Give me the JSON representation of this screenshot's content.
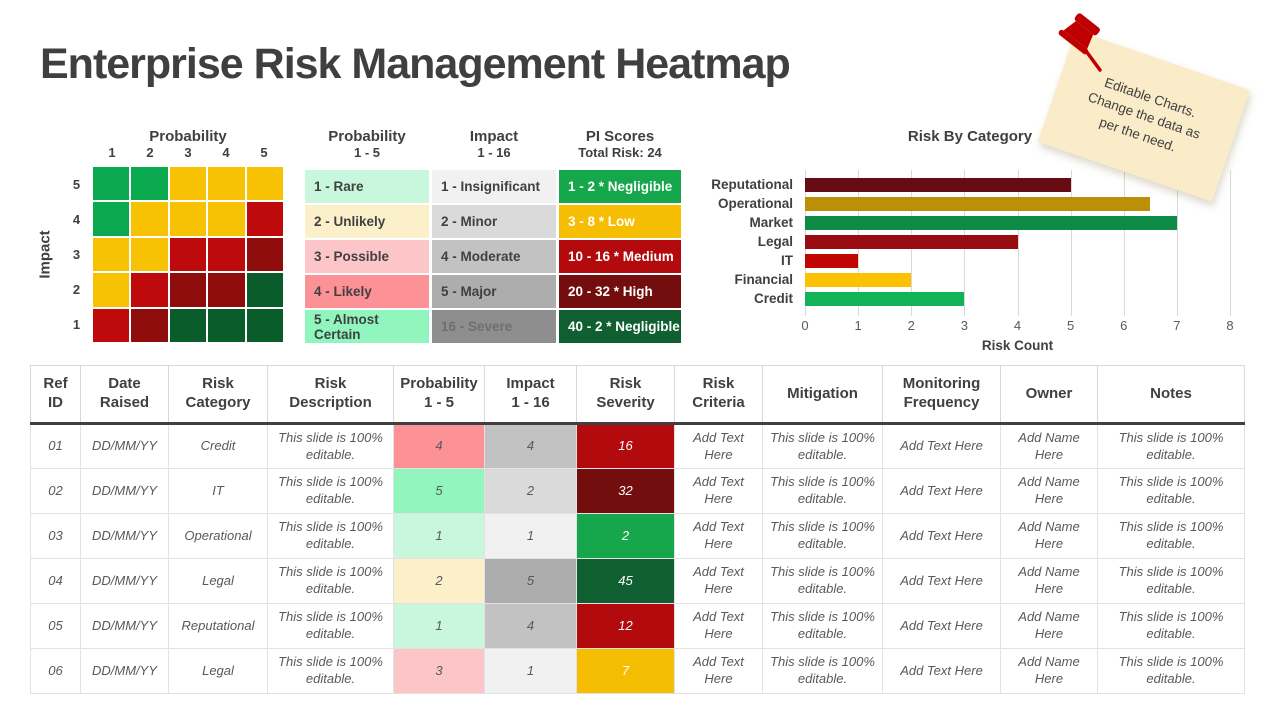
{
  "title": "Enterprise Risk Management Heatmap",
  "heatmap": {
    "x_title": "Probability",
    "y_title": "Impact",
    "x_labels": [
      "1",
      "2",
      "3",
      "4",
      "5"
    ],
    "y_labels": [
      "5",
      "4",
      "3",
      "2",
      "1"
    ],
    "palette": {
      "green": "#0AA84F",
      "yellow": "#F7C104",
      "red": "#BE0A0A",
      "darkred": "#8E0C0C",
      "darkgreen": "#0A5C2B"
    },
    "rows": [
      [
        "green",
        "green",
        "yellow",
        "yellow",
        "yellow"
      ],
      [
        "green",
        "yellow",
        "yellow",
        "yellow",
        "red"
      ],
      [
        "yellow",
        "yellow",
        "red",
        "red",
        "darkred"
      ],
      [
        "yellow",
        "red",
        "darkred",
        "darkred",
        "darkgreen"
      ],
      [
        "red",
        "darkred",
        "darkgreen",
        "darkgreen",
        "darkgreen"
      ]
    ]
  },
  "legend": {
    "columns": [
      {
        "title": "Probability",
        "subtitle": "1 - 5",
        "cells": [
          {
            "label": "1 - Rare",
            "bg": "#C9F7DE",
            "fg": "#404040"
          },
          {
            "label": "2 - Unlikely",
            "bg": "#FCF0CB",
            "fg": "#404040"
          },
          {
            "label": "3 - Possible",
            "bg": "#FCC6C9",
            "fg": "#404040"
          },
          {
            "label": "4 - Likely",
            "bg": "#FC9295",
            "fg": "#404040"
          },
          {
            "label": "5 - Almost Certain",
            "bg": "#90F6BE",
            "fg": "#404040"
          }
        ]
      },
      {
        "title": "Impact",
        "subtitle": "1 - 16",
        "cells": [
          {
            "label": "1 - Insignificant",
            "bg": "#F1F1F1",
            "fg": "#404040"
          },
          {
            "label": "2 - Minor",
            "bg": "#DADADA",
            "fg": "#404040"
          },
          {
            "label": "4 - Moderate",
            "bg": "#C2C2C2",
            "fg": "#404040"
          },
          {
            "label": "5 - Major",
            "bg": "#ADADAD",
            "fg": "#404040"
          },
          {
            "label": "16 - Severe",
            "bg": "#8E8E8E",
            "fg": "#6F6F6F"
          }
        ]
      },
      {
        "title": "PI Scores",
        "subtitle": "Total Risk: 24",
        "cells": [
          {
            "label": "1 - 2 * Negligible",
            "bg": "#16A64B",
            "fg": "#FFFFFF"
          },
          {
            "label": "3 - 8 * Low",
            "bg": "#F5BE03",
            "fg": "#FFFFFF"
          },
          {
            "label": "10 - 16 * Medium",
            "bg": "#B30A0D",
            "fg": "#FFFFFF"
          },
          {
            "label": "20 - 32 * High",
            "bg": "#740D0D",
            "fg": "#FFFFFF"
          },
          {
            "label": "40 - 2 * Negligible",
            "bg": "#0F5F31",
            "fg": "#FFFFFF"
          }
        ]
      }
    ]
  },
  "chart_data": {
    "type": "bar",
    "orientation": "horizontal",
    "title": "Risk By Category",
    "categories": [
      "Reputational",
      "Operational",
      "Market",
      "Legal",
      "IT",
      "Financial",
      "Credit"
    ],
    "values": [
      5,
      6.5,
      7,
      4,
      1,
      2,
      3
    ],
    "colors": [
      "#680C13",
      "#BB8F06",
      "#0C8A46",
      "#990D12",
      "#C00502",
      "#FBC102",
      "#12B357"
    ],
    "xlabel": "Risk Count",
    "xlim": [
      0,
      8
    ],
    "xticks": [
      "0",
      "1",
      "2",
      "3",
      "4",
      "5",
      "6",
      "7",
      "8"
    ],
    "grid": true,
    "legend_shown": false
  },
  "sticky_note": {
    "lines": [
      "Editable Charts.",
      "Change the data as",
      "per the need."
    ]
  },
  "risk_table": {
    "headers": [
      "Ref\nID",
      "Date\nRaised",
      "Risk\nCategory",
      "Risk Description",
      "Probability\n1 - 5",
      "Impact\n1 - 16",
      "Risk\nSeverity",
      "Risk\nCriteria",
      "Mitigation",
      "Monitoring\nFrequency",
      "Owner",
      "Notes"
    ],
    "rows": [
      {
        "ref": "01",
        "date": "DD/MM/YY",
        "category": "Credit",
        "description": "This slide is 100% editable.",
        "prob": {
          "v": "4",
          "bg": "#FC9295",
          "fg": "#595959"
        },
        "impact": {
          "v": "4",
          "bg": "#C2C2C2",
          "fg": "#595959"
        },
        "severity": {
          "v": "16",
          "bg": "#B30A0D",
          "fg": "#FFFFFF"
        },
        "criteria": "Add Text Here",
        "mitigation": "This slide is 100% editable.",
        "monitoring": "Add Text Here",
        "owner": "Add Name Here",
        "notes": "This slide is 100% editable."
      },
      {
        "ref": "02",
        "date": "DD/MM/YY",
        "category": "IT",
        "description": "This slide is 100% editable.",
        "prob": {
          "v": "5",
          "bg": "#90F6BE",
          "fg": "#595959"
        },
        "impact": {
          "v": "2",
          "bg": "#DADADA",
          "fg": "#595959"
        },
        "severity": {
          "v": "32",
          "bg": "#740D0D",
          "fg": "#FFFFFF"
        },
        "criteria": "Add Text Here",
        "mitigation": "This slide is 100% editable.",
        "monitoring": "Add Text Here",
        "owner": "Add Name Here",
        "notes": "This slide is 100% editable."
      },
      {
        "ref": "03",
        "date": "DD/MM/YY",
        "category": "Operational",
        "description": "This slide is 100% editable.",
        "prob": {
          "v": "1",
          "bg": "#C9F7DE",
          "fg": "#595959"
        },
        "impact": {
          "v": "1",
          "bg": "#F1F1F1",
          "fg": "#595959"
        },
        "severity": {
          "v": "2",
          "bg": "#16A64B",
          "fg": "#FFFFFF"
        },
        "criteria": "Add Text Here",
        "mitigation": "This slide is 100% editable.",
        "monitoring": "Add Text Here",
        "owner": "Add Name Here",
        "notes": "This slide is 100% editable."
      },
      {
        "ref": "04",
        "date": "DD/MM/YY",
        "category": "Legal",
        "description": "This slide is 100% editable.",
        "prob": {
          "v": "2",
          "bg": "#FCF0CB",
          "fg": "#595959"
        },
        "impact": {
          "v": "5",
          "bg": "#ADADAD",
          "fg": "#595959"
        },
        "severity": {
          "v": "45",
          "bg": "#0F5F31",
          "fg": "#FFFFFF"
        },
        "criteria": "Add Text Here",
        "mitigation": "This slide is 100% editable.",
        "monitoring": "Add Text Here",
        "owner": "Add Name Here",
        "notes": "This slide is 100% editable."
      },
      {
        "ref": "05",
        "date": "DD/MM/YY",
        "category": "Reputational",
        "description": "This slide is 100% editable.",
        "prob": {
          "v": "1",
          "bg": "#C9F7DE",
          "fg": "#595959"
        },
        "impact": {
          "v": "4",
          "bg": "#C2C2C2",
          "fg": "#595959"
        },
        "severity": {
          "v": "12",
          "bg": "#B30A0D",
          "fg": "#FFFFFF"
        },
        "criteria": "Add Text Here",
        "mitigation": "This slide is 100% editable.",
        "monitoring": "Add Text Here",
        "owner": "Add Name Here",
        "notes": "This slide is 100% editable."
      },
      {
        "ref": "06",
        "date": "DD/MM/YY",
        "category": "Legal",
        "description": "This slide is 100% editable.",
        "prob": {
          "v": "3",
          "bg": "#FCC6C9",
          "fg": "#595959"
        },
        "impact": {
          "v": "1",
          "bg": "#F1F1F1",
          "fg": "#595959"
        },
        "severity": {
          "v": "7",
          "bg": "#F5BE03",
          "fg": "#FFFFFF"
        },
        "criteria": "Add Text Here",
        "mitigation": "This slide is 100% editable.",
        "monitoring": "Add Text Here",
        "owner": "Add Name Here",
        "notes": "This slide is 100% editable."
      }
    ]
  }
}
